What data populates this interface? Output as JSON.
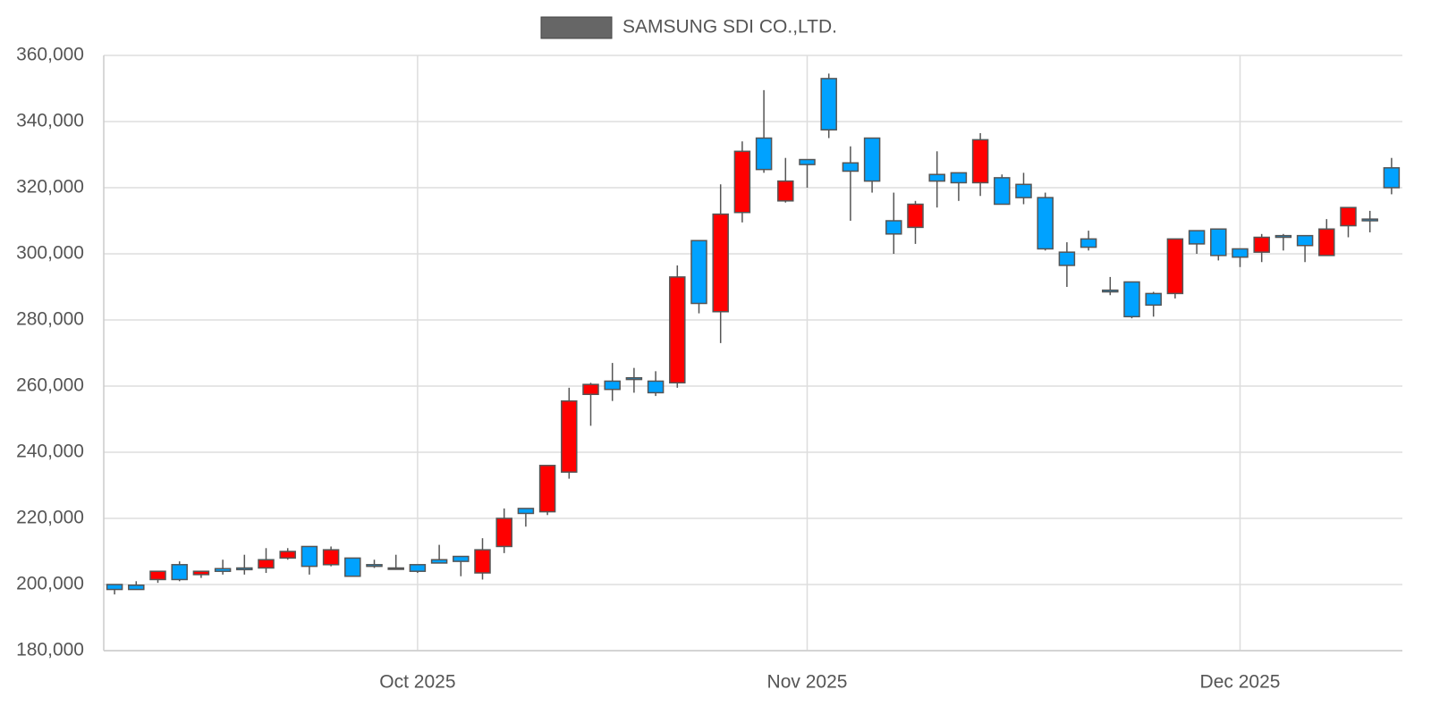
{
  "chart_data": {
    "type": "candlestick",
    "categories": [
      null,
      null,
      null,
      null,
      null,
      null,
      null,
      null,
      null,
      null,
      null,
      null,
      null,
      null,
      "Oct 2025",
      null,
      null,
      null,
      null,
      null,
      null,
      null,
      null,
      null,
      null,
      null,
      null,
      null,
      null,
      null,
      null,
      null,
      "Nov 2025",
      null,
      null,
      null,
      null,
      null,
      null,
      null,
      null,
      null,
      null,
      null,
      null,
      null,
      null,
      null,
      null,
      null,
      null,
      null,
      "Dec 2025",
      null,
      null,
      null,
      null,
      null,
      null,
      null
    ],
    "series": [
      {
        "name": "SAMSUNG SDI CO.,LTD.",
        "color": "#666666",
        "up_color": "#ff0000",
        "down_color": "#00a2ff",
        "open": [
          200000,
          199800,
          201500,
          206000,
          203000,
          204800,
          205000,
          205000,
          208000,
          211500,
          206000,
          208000,
          206000,
          205000,
          206000,
          207500,
          208500,
          203500,
          211500,
          223000,
          222000,
          234000,
          257500,
          261500,
          262500,
          261500,
          261000,
          304000,
          282500,
          312500,
          335000,
          316000,
          328500,
          353000,
          327500,
          335000,
          310000,
          308000,
          324000,
          324500,
          321500,
          323000,
          321000,
          317000,
          300500,
          304500,
          289000,
          291500,
          288000,
          288000,
          307000,
          307500,
          301500,
          300500,
          305500,
          305500,
          299500,
          308500,
          310500,
          326000
        ],
        "high": [
          200000,
          201000,
          204000,
          207000,
          204000,
          207500,
          209000,
          211000,
          211000,
          211500,
          211500,
          208000,
          207500,
          209000,
          206000,
          212000,
          208500,
          214000,
          223000,
          223000,
          236000,
          259500,
          261000,
          267000,
          265500,
          264500,
          296500,
          304000,
          321000,
          334000,
          349500,
          329000,
          328500,
          354500,
          332500,
          335000,
          318500,
          316000,
          331000,
          324500,
          336500,
          324000,
          324500,
          318500,
          303500,
          307000,
          293000,
          291500,
          288500,
          304500,
          307000,
          307500,
          301500,
          306000,
          306000,
          305500,
          310500,
          314000,
          313000,
          329000
        ],
        "low": [
          197000,
          198500,
          200500,
          201000,
          202000,
          203000,
          203000,
          203500,
          207500,
          203000,
          205500,
          202500,
          205000,
          204500,
          203500,
          206500,
          202500,
          201500,
          209500,
          217500,
          221000,
          232000,
          248000,
          255500,
          258000,
          257000,
          259500,
          282000,
          273000,
          309500,
          324500,
          315500,
          320000,
          335000,
          310000,
          318500,
          300000,
          303000,
          314000,
          316000,
          317500,
          315000,
          315000,
          301000,
          290000,
          301000,
          287500,
          280500,
          281000,
          286500,
          300000,
          298000,
          296000,
          297500,
          301000,
          297500,
          299500,
          305000,
          306500,
          318000
        ],
        "close": [
          198500,
          198500,
          204000,
          201500,
          204000,
          204000,
          204500,
          207500,
          210000,
          205500,
          210500,
          202500,
          205500,
          205000,
          204000,
          206500,
          207000,
          210500,
          220000,
          221500,
          236000,
          255500,
          260500,
          259000,
          262000,
          258000,
          293000,
          285000,
          312000,
          331000,
          325500,
          322000,
          327000,
          337500,
          325000,
          322000,
          306000,
          315000,
          322000,
          321500,
          334500,
          315000,
          317000,
          301500,
          296500,
          302000,
          288500,
          281000,
          284500,
          304500,
          303000,
          299500,
          299000,
          305000,
          305000,
          302500,
          307500,
          314000,
          310000,
          320000
        ]
      }
    ],
    "ylim": [
      180000,
      360000
    ],
    "yticks": [
      {
        "value": 180000,
        "label": "180,000"
      },
      {
        "value": 200000,
        "label": "200,000"
      },
      {
        "value": 220000,
        "label": "220,000"
      },
      {
        "value": 240000,
        "label": "240,000"
      },
      {
        "value": 260000,
        "label": "260,000"
      },
      {
        "value": 280000,
        "label": "280,000"
      },
      {
        "value": 300000,
        "label": "300,000"
      },
      {
        "value": 320000,
        "label": "320,000"
      },
      {
        "value": 340000,
        "label": "340,000"
      },
      {
        "value": 360000,
        "label": "360,000"
      }
    ],
    "grid": true
  }
}
